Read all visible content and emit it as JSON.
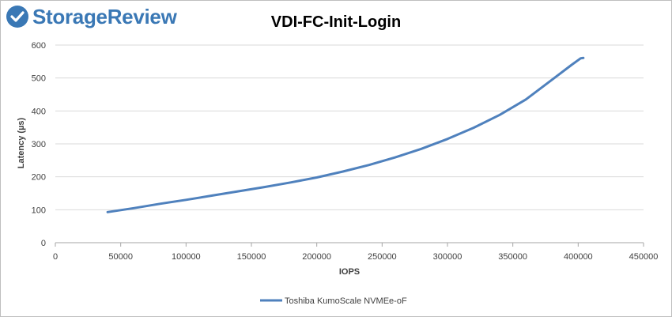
{
  "brand": {
    "name": "StorageReview",
    "icon": "storagereview-logo-icon",
    "color": "#3a78b5"
  },
  "chart_data": {
    "type": "line",
    "title": "VDI-FC-Init-Login",
    "xlabel": "IOPS",
    "ylabel": "Latency (µs)",
    "xlim": [
      0,
      450000
    ],
    "ylim": [
      0,
      600
    ],
    "x_ticks": [
      "0",
      "50000",
      "100000",
      "150000",
      "200000",
      "250000",
      "300000",
      "350000",
      "400000",
      "450000"
    ],
    "y_ticks": [
      "0",
      "100",
      "200",
      "300",
      "400",
      "500",
      "600"
    ],
    "grid": "horizontal",
    "legend": "bottom",
    "series": [
      {
        "name": "Toshiba KumoScale NVMEe-oF",
        "color": "#4f81bd",
        "x": [
          40000,
          60000,
          80000,
          100000,
          120000,
          140000,
          160000,
          180000,
          200000,
          220000,
          240000,
          260000,
          280000,
          300000,
          320000,
          340000,
          360000,
          380000,
          395000,
          402000,
          404000
        ],
        "y": [
          93,
          105,
          118,
          130,
          143,
          156,
          169,
          183,
          198,
          216,
          236,
          259,
          285,
          315,
          349,
          388,
          435,
          495,
          540,
          560,
          561
        ]
      }
    ]
  }
}
